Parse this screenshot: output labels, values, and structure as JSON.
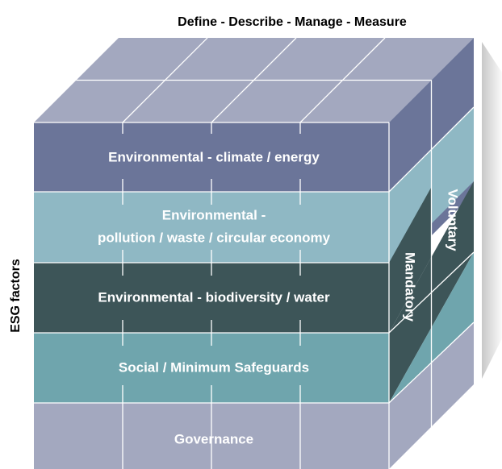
{
  "title": "Define - Describe - Manage - Measure",
  "left_label": "ESG factors",
  "layers": [
    {
      "lines": [
        "Environmental - climate / energy"
      ]
    },
    {
      "lines": [
        "Environmental -",
        "pollution / waste / circular economy"
      ]
    },
    {
      "lines": [
        "Environmental - biodiversity / water"
      ]
    },
    {
      "lines": [
        "Social / Minimum Safeguards"
      ]
    },
    {
      "lines": [
        "Governance"
      ]
    }
  ],
  "side_labels": [
    "Mandatory",
    "Voluntary"
  ]
}
